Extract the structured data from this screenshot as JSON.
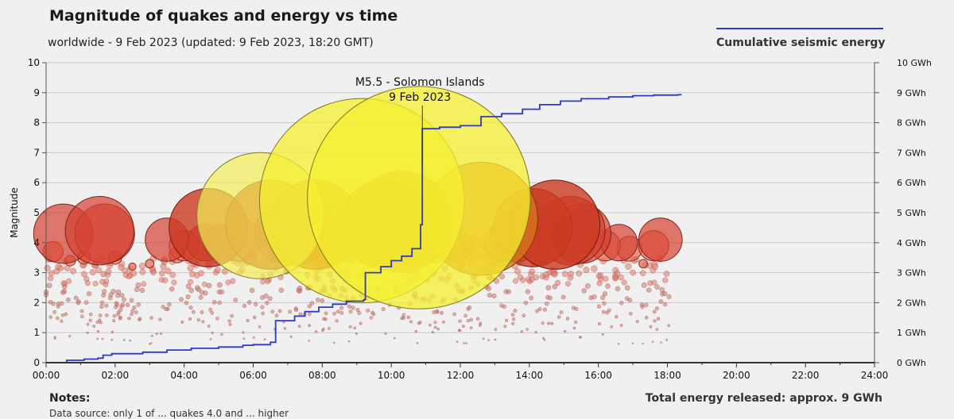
{
  "header": {
    "title": "Magnitude of quakes and energy vs time",
    "subtitle": "worldwide -  9 Feb 2023 (updated: 9 Feb 2023, 18:20 GMT)"
  },
  "legend": {
    "label": "Cumulative seismic energy",
    "line_color": "#2a3bc9"
  },
  "notes": {
    "heading": "Notes:",
    "text": "Data source: only 1 of ... quakes  4.0 and ... higher"
  },
  "total": "Total energy released: approx. 9 GWh",
  "chart_data": {
    "type": "scatter",
    "title": "Magnitude of quakes and energy vs time",
    "ylabel": "Magnitude",
    "y2label": "Cumulative seismic energy",
    "xlim": [
      0,
      24
    ],
    "ylim": [
      0,
      10
    ],
    "y2lim": [
      0,
      10
    ],
    "x_ticks": [
      "00:00",
      "02:00",
      "04:00",
      "06:00",
      "08:00",
      "10:00",
      "12:00",
      "14:00",
      "16:00",
      "18:00",
      "20:00",
      "22:00",
      "24:00"
    ],
    "y_ticks": [
      "0",
      "1",
      "2",
      "3",
      "4",
      "5",
      "6",
      "7",
      "8",
      "9",
      "10"
    ],
    "y2_ticks": [
      "0 GWh",
      "1 GWh",
      "2 GWh",
      "3 GWh",
      "4 GWh",
      "5 GWh",
      "6 GWh",
      "7 GWh",
      "8 GWh",
      "9 GWh",
      "10 GWh"
    ],
    "annotation": {
      "line1": "M5.5 - Solomon Islands",
      "line2": "9 Feb 2023",
      "x": 10.9
    },
    "quakes": [
      {
        "t": 9.15,
        "m": 5.4
      },
      {
        "t": 10.8,
        "m": 5.5
      },
      {
        "t": 6.2,
        "m": 4.9
      },
      {
        "t": 7.2,
        "m": 4.4
      },
      {
        "t": 12.6,
        "m": 4.8
      },
      {
        "t": 14.1,
        "m": 4.5
      },
      {
        "t": 14.75,
        "m": 4.6
      },
      {
        "t": 0.5,
        "m": 4.3
      },
      {
        "t": 1.55,
        "m": 4.4
      },
      {
        "t": 1.7,
        "m": 4.3
      },
      {
        "t": 4.7,
        "m": 4.5
      },
      {
        "t": 3.5,
        "m": 4.1
      },
      {
        "t": 4.0,
        "m": 3.9
      },
      {
        "t": 4.6,
        "m": 4.0
      },
      {
        "t": 5.1,
        "m": 4.0
      },
      {
        "t": 5.6,
        "m": 4.1
      },
      {
        "t": 6.5,
        "m": 4.6
      },
      {
        "t": 6.9,
        "m": 4.3
      },
      {
        "t": 7.0,
        "m": 3.9
      },
      {
        "t": 7.8,
        "m": 4.6
      },
      {
        "t": 8.2,
        "m": 4.3
      },
      {
        "t": 8.5,
        "m": 4.1
      },
      {
        "t": 8.8,
        "m": 3.7
      },
      {
        "t": 9.8,
        "m": 4.6
      },
      {
        "t": 10.3,
        "m": 4.7
      },
      {
        "t": 10.6,
        "m": 4.4
      },
      {
        "t": 11.0,
        "m": 4.0
      },
      {
        "t": 11.3,
        "m": 3.6
      },
      {
        "t": 11.9,
        "m": 3.9
      },
      {
        "t": 12.4,
        "m": 3.8
      },
      {
        "t": 13.2,
        "m": 4.0
      },
      {
        "t": 13.6,
        "m": 4.2
      },
      {
        "t": 15.2,
        "m": 4.4
      },
      {
        "t": 15.5,
        "m": 4.3
      },
      {
        "t": 16.2,
        "m": 3.9
      },
      {
        "t": 16.6,
        "m": 4.0
      },
      {
        "t": 16.9,
        "m": 3.8
      },
      {
        "t": 17.6,
        "m": 3.9
      },
      {
        "t": 17.8,
        "m": 4.1
      },
      {
        "t": 0.2,
        "m": 3.7
      },
      {
        "t": 0.7,
        "m": 3.4
      },
      {
        "t": 1.1,
        "m": 3.5
      },
      {
        "t": 2.0,
        "m": 3.5
      },
      {
        "t": 2.5,
        "m": 3.2
      },
      {
        "t": 3.0,
        "m": 3.3
      },
      {
        "t": 3.8,
        "m": 3.6
      },
      {
        "t": 5.9,
        "m": 3.5
      },
      {
        "t": 9.6,
        "m": 3.7
      },
      {
        "t": 12.9,
        "m": 3.5
      },
      {
        "t": 14.4,
        "m": 3.6
      },
      {
        "t": 17.3,
        "m": 3.3
      }
    ],
    "energy_steps": [
      [
        0.0,
        0.0
      ],
      [
        0.6,
        0.08
      ],
      [
        1.1,
        0.12
      ],
      [
        1.5,
        0.15
      ],
      [
        1.65,
        0.25
      ],
      [
        1.9,
        0.3
      ],
      [
        2.8,
        0.35
      ],
      [
        3.5,
        0.42
      ],
      [
        4.2,
        0.48
      ],
      [
        5.0,
        0.52
      ],
      [
        5.7,
        0.58
      ],
      [
        6.0,
        0.6
      ],
      [
        6.5,
        0.68
      ],
      [
        6.65,
        1.4
      ],
      [
        7.2,
        1.55
      ],
      [
        7.5,
        1.7
      ],
      [
        7.9,
        1.85
      ],
      [
        8.3,
        1.95
      ],
      [
        8.7,
        2.05
      ],
      [
        9.2,
        2.1
      ],
      [
        9.25,
        3.0
      ],
      [
        9.7,
        3.2
      ],
      [
        10.0,
        3.4
      ],
      [
        10.3,
        3.55
      ],
      [
        10.6,
        3.8
      ],
      [
        10.85,
        4.6
      ],
      [
        10.9,
        7.8
      ],
      [
        11.4,
        7.85
      ],
      [
        12.0,
        7.9
      ],
      [
        12.6,
        8.2
      ],
      [
        13.2,
        8.3
      ],
      [
        13.8,
        8.45
      ],
      [
        14.3,
        8.6
      ],
      [
        14.9,
        8.72
      ],
      [
        15.5,
        8.8
      ],
      [
        16.3,
        8.86
      ],
      [
        17.0,
        8.9
      ],
      [
        17.6,
        8.92
      ],
      [
        18.3,
        8.93
      ]
    ]
  }
}
